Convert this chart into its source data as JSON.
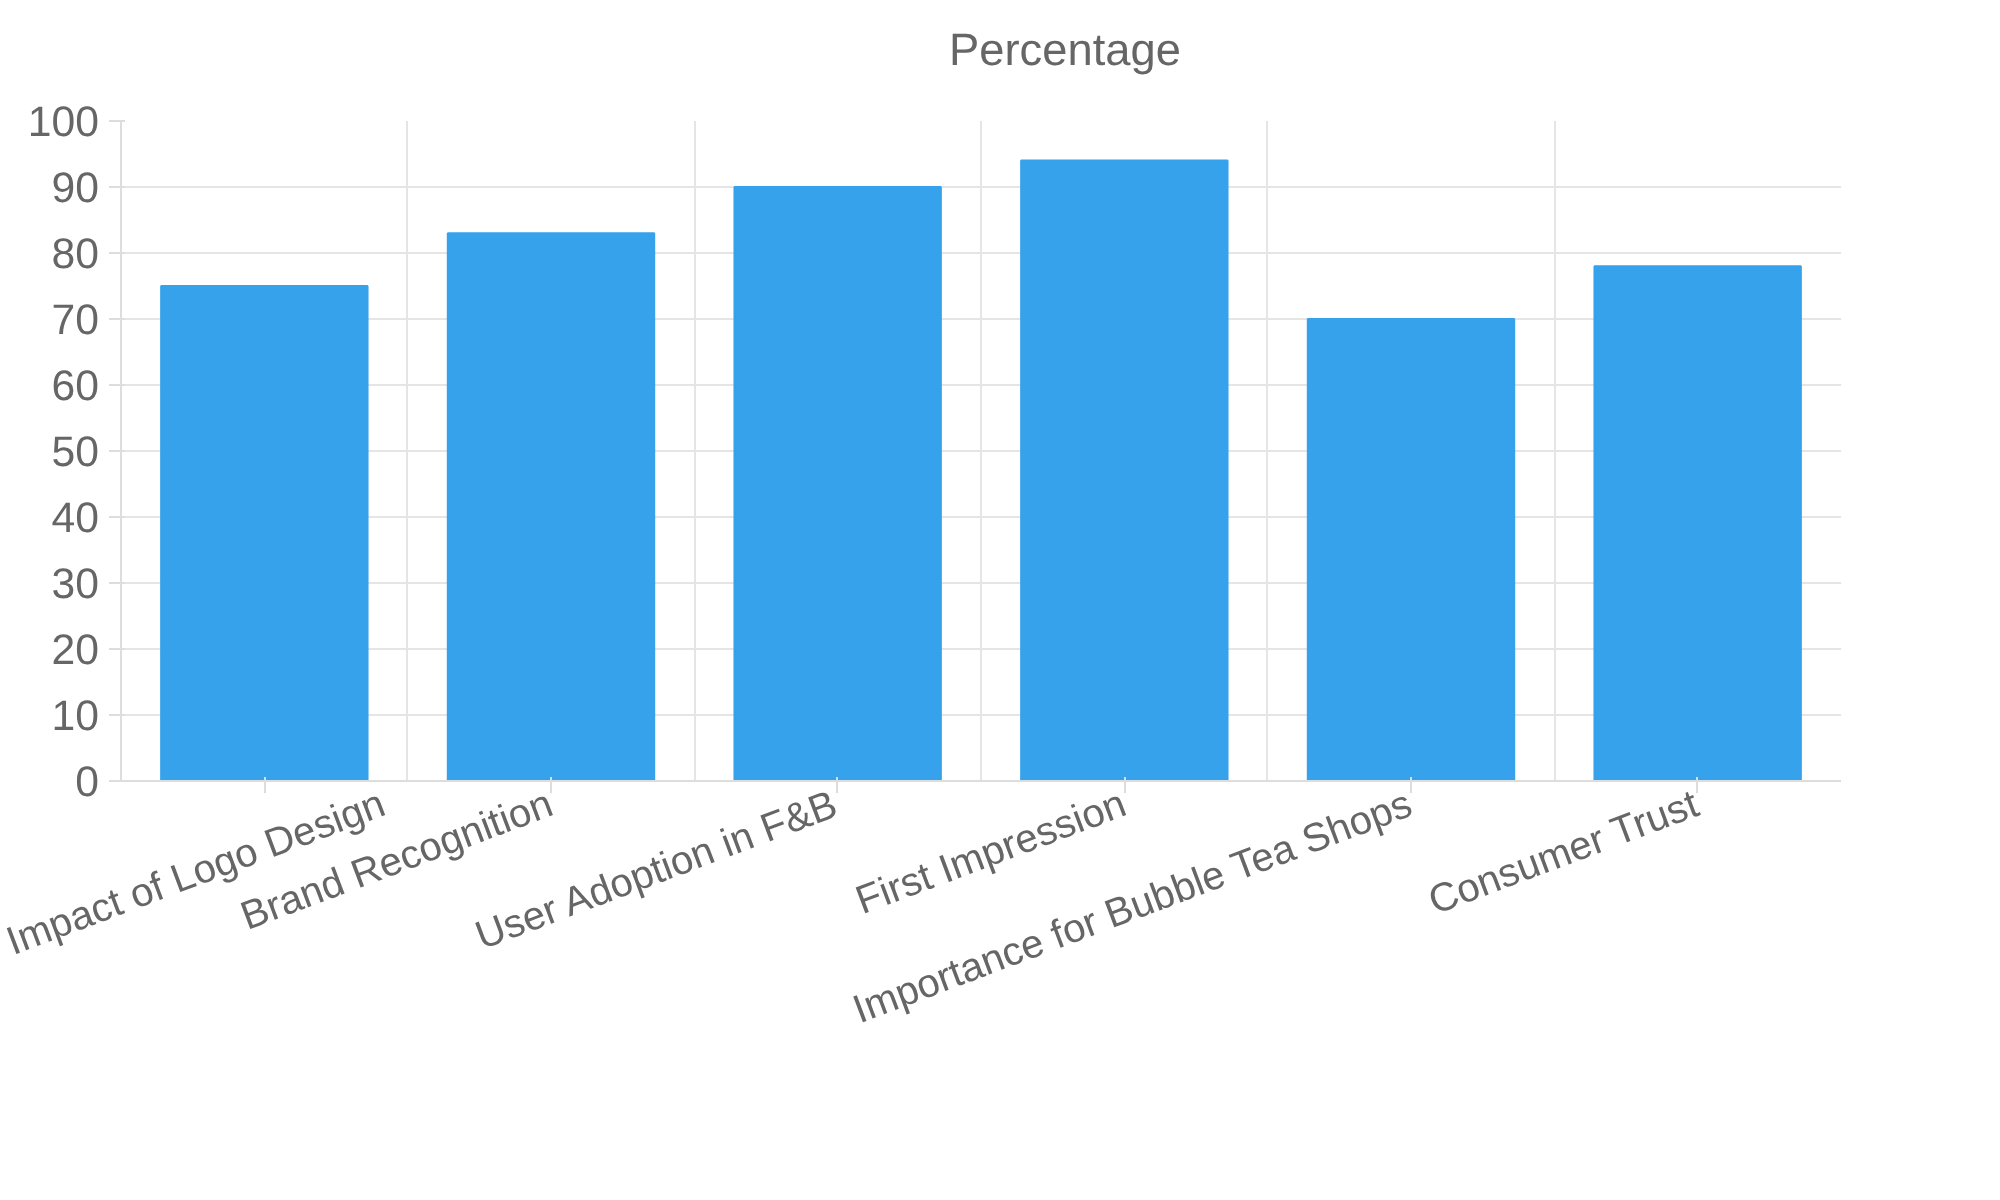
{
  "chart_data": {
    "type": "bar",
    "categories": [
      "Impact of Logo Design",
      "Brand Recognition",
      "User Adoption in F&B",
      "First Impression",
      "Importance for Bubble Tea Shops",
      "Consumer Trust"
    ],
    "series": [
      {
        "name": "Percentage",
        "color": "#36a2eb",
        "values": [
          75,
          83,
          90,
          94,
          70,
          78
        ]
      }
    ],
    "ylim": [
      0,
      100
    ],
    "yticks": [
      0,
      10,
      20,
      30,
      40,
      50,
      60,
      70,
      80,
      90,
      100
    ],
    "grid": true,
    "legend": "top"
  }
}
